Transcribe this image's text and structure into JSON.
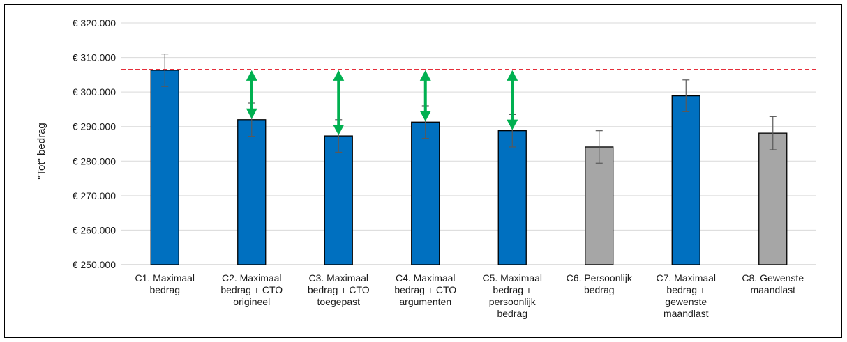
{
  "chart_data": {
    "type": "bar",
    "ylabel": "\"Tot\" bedrag",
    "ylim": [
      250000,
      320000
    ],
    "ytick_labels": [
      "€ 250.000",
      "€ 260.000",
      "€ 270.000",
      "€ 280.000",
      "€ 290.000",
      "€ 300.000",
      "€ 310.000",
      "€ 320.000"
    ],
    "yticks": [
      250000,
      260000,
      270000,
      280000,
      290000,
      300000,
      310000,
      320000
    ],
    "grid": true,
    "categories": [
      [
        "C1. Maximaal",
        "bedrag"
      ],
      [
        "C2. Maximaal",
        "bedrag + CTO",
        "origineel"
      ],
      [
        "C3. Maximaal",
        "bedrag + CTO",
        "toegepast"
      ],
      [
        "C4. Maximaal",
        "bedrag + CTO",
        "argumenten"
      ],
      [
        "C5. Maximaal",
        "bedrag +",
        "persoonlijk",
        "bedrag"
      ],
      [
        "C6. Persoonlijk",
        "bedrag"
      ],
      [
        "C7. Maximaal",
        "bedrag +",
        "gewenste",
        "maandlast"
      ],
      [
        "C8. Gewenste",
        "maandlast"
      ]
    ],
    "values": [
      306300,
      292000,
      287300,
      291300,
      288800,
      284100,
      298900,
      288100
    ],
    "errors": [
      4700,
      4800,
      4700,
      4700,
      4700,
      4700,
      4600,
      4800
    ],
    "bar_colors": [
      "#0070c0",
      "#0070c0",
      "#0070c0",
      "#0070c0",
      "#0070c0",
      "#a6a6a6",
      "#0070c0",
      "#a6a6a6"
    ],
    "reference_line": {
      "value": 306500,
      "color": "#e3101e",
      "style": "dashed"
    },
    "difference_arrows": {
      "categories_index": [
        1,
        2,
        3,
        4
      ],
      "color": "#00b050"
    }
  }
}
